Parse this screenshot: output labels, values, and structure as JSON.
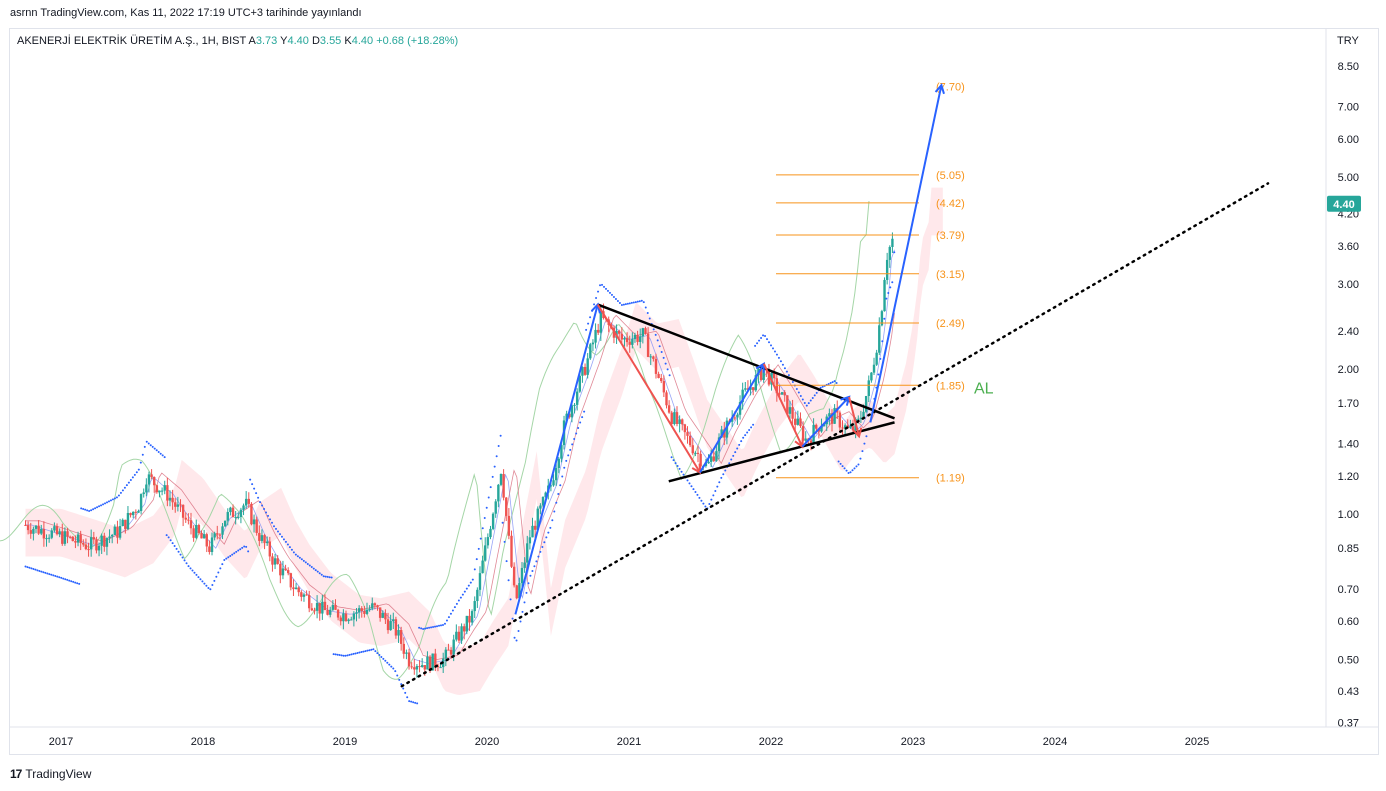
{
  "credit": "asrnn TradingView.com, Kas 11, 2022 17:19 UTC+3 tarihinde yayınlandı",
  "legend": {
    "symbol": "AKENERJİ ELEKTRİK ÜRETİM A.Ş., 1H, BIST",
    "open_label": "A",
    "open": "3.73",
    "high_label": "Y",
    "high": "4.40",
    "low_label": "D",
    "low": "3.55",
    "close_label": "K",
    "close": "4.40",
    "change": "+0.68 (+18.28%)"
  },
  "currency": "TRY",
  "footer": {
    "brand": "TradingView",
    "mark": "17"
  },
  "colors": {
    "up": "#26a69a",
    "down": "#ef5350",
    "accent": "#2962ff",
    "fib": "#f7931a",
    "label_al": "#4caf50",
    "cloud_up": "#a5d6a7",
    "cloud_down": "#ffcdd2"
  },
  "chart_data": {
    "type": "candlestick",
    "scale": "log",
    "y_ticks": [
      "8.50",
      "7.00",
      "6.00",
      "5.00",
      "4.20",
      "3.60",
      "3.00",
      "2.40",
      "2.00",
      "1.70",
      "1.40",
      "1.20",
      "1.00",
      "0.85",
      "0.70",
      "0.60",
      "0.50",
      "0.43",
      "0.37"
    ],
    "x_ticks": [
      "2017",
      "2018",
      "2019",
      "2020",
      "2021",
      "2022",
      "2023",
      "2024",
      "2025"
    ],
    "last_price": "4.40",
    "annotation": "AL",
    "fib_levels": [
      {
        "label": "(7.70)",
        "value": 7.7
      },
      {
        "label": "(5.05)",
        "value": 5.05
      },
      {
        "label": "(4.42)",
        "value": 4.42
      },
      {
        "label": "(3.79)",
        "value": 3.79
      },
      {
        "label": "(3.15)",
        "value": 3.15
      },
      {
        "label": "(2.49)",
        "value": 2.49
      },
      {
        "label": "(1.85)",
        "value": 1.85
      },
      {
        "label": "(1.19)",
        "value": 1.19
      }
    ],
    "price_path": [
      [
        2016.75,
        0.95
      ],
      [
        2017.0,
        0.9
      ],
      [
        2017.2,
        0.86
      ],
      [
        2017.4,
        0.92
      ],
      [
        2017.55,
        1.05
      ],
      [
        2017.6,
        1.2
      ],
      [
        2017.75,
        1.1
      ],
      [
        2017.9,
        0.95
      ],
      [
        2018.05,
        0.85
      ],
      [
        2018.15,
        0.98
      ],
      [
        2018.3,
        1.05
      ],
      [
        2018.4,
        0.9
      ],
      [
        2018.5,
        0.8
      ],
      [
        2018.65,
        0.7
      ],
      [
        2018.85,
        0.63
      ],
      [
        2019.0,
        0.62
      ],
      [
        2019.2,
        0.64
      ],
      [
        2019.35,
        0.58
      ],
      [
        2019.45,
        0.5
      ],
      [
        2019.55,
        0.49
      ],
      [
        2019.7,
        0.5
      ],
      [
        2019.8,
        0.56
      ],
      [
        2019.9,
        0.62
      ],
      [
        2020.0,
        0.88
      ],
      [
        2020.1,
        1.25
      ],
      [
        2020.2,
        0.65
      ],
      [
        2020.3,
        0.9
      ],
      [
        2020.45,
        1.15
      ],
      [
        2020.55,
        1.55
      ],
      [
        2020.7,
        2.05
      ],
      [
        2020.8,
        2.55
      ],
      [
        2020.95,
        2.3
      ],
      [
        2021.1,
        2.35
      ],
      [
        2021.2,
        1.95
      ],
      [
        2021.3,
        1.6
      ],
      [
        2021.45,
        1.38
      ],
      [
        2021.55,
        1.25
      ],
      [
        2021.65,
        1.45
      ],
      [
        2021.8,
        1.75
      ],
      [
        2021.95,
        2.0
      ],
      [
        2022.05,
        1.8
      ],
      [
        2022.15,
        1.6
      ],
      [
        2022.25,
        1.42
      ],
      [
        2022.35,
        1.55
      ],
      [
        2022.45,
        1.6
      ],
      [
        2022.55,
        1.48
      ],
      [
        2022.62,
        1.55
      ],
      [
        2022.7,
        1.9
      ],
      [
        2022.75,
        2.3
      ],
      [
        2022.78,
        2.7
      ],
      [
        2022.81,
        3.4
      ],
      [
        2022.84,
        3.6
      ],
      [
        2022.86,
        3.73
      ],
      [
        2022.87,
        4.4
      ]
    ]
  }
}
